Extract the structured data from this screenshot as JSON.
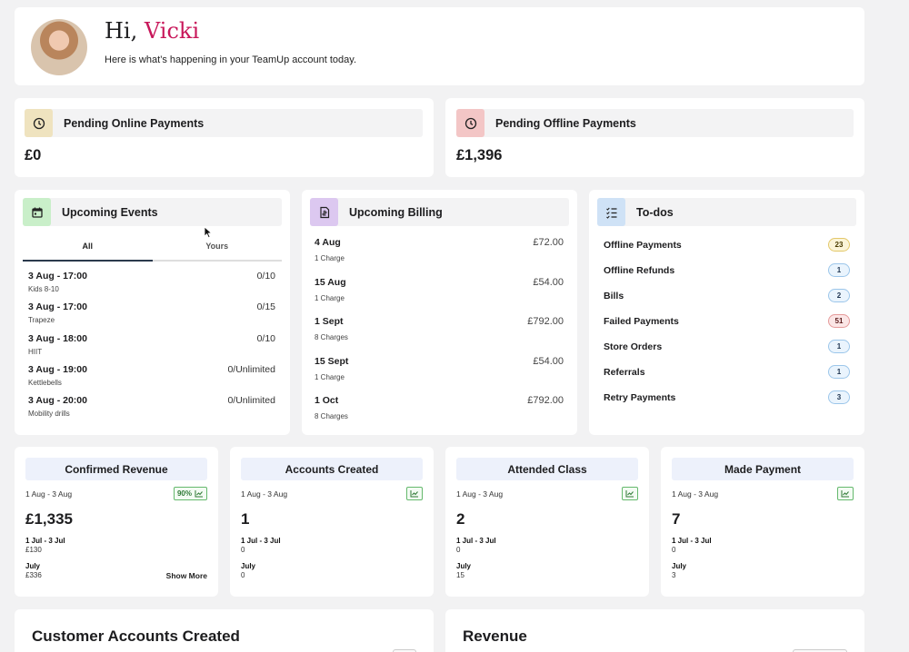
{
  "greeting": {
    "hi": "Hi,",
    "name": "Vicki",
    "subtitle": "Here is what’s happening in your TeamUp account today."
  },
  "payments": {
    "online": {
      "label": "Pending Online Payments",
      "amount": "£0"
    },
    "offline": {
      "label": "Pending Offline Payments",
      "amount": "£1,396"
    }
  },
  "events": {
    "title": "Upcoming Events",
    "tabs": [
      "All",
      "Yours"
    ],
    "items": [
      {
        "time": "3 Aug - 17:00",
        "name": "Kids 8-10",
        "count": "0/10"
      },
      {
        "time": "3 Aug - 17:00",
        "name": "Trapeze",
        "count": "0/15"
      },
      {
        "time": "3 Aug - 18:00",
        "name": "HIIT",
        "count": "0/10"
      },
      {
        "time": "3 Aug - 19:00",
        "name": "Kettlebells",
        "count": "0/Unlimited"
      },
      {
        "time": "3 Aug - 20:00",
        "name": "Mobility drills",
        "count": "0/Unlimited"
      }
    ]
  },
  "billing": {
    "title": "Upcoming Billing",
    "items": [
      {
        "date": "4 Aug",
        "charges": "1 Charge",
        "amount": "£72.00"
      },
      {
        "date": "15 Aug",
        "charges": "1 Charge",
        "amount": "£54.00"
      },
      {
        "date": "1 Sept",
        "charges": "8 Charges",
        "amount": "£792.00"
      },
      {
        "date": "15 Sept",
        "charges": "1 Charge",
        "amount": "£54.00"
      },
      {
        "date": "1 Oct",
        "charges": "8 Charges",
        "amount": "£792.00"
      }
    ]
  },
  "todos": {
    "title": "To-dos",
    "items": [
      {
        "label": "Offline Payments",
        "count": "23",
        "color": "yellow"
      },
      {
        "label": "Offline Refunds",
        "count": "1",
        "color": "blue"
      },
      {
        "label": "Bills",
        "count": "2",
        "color": "blue"
      },
      {
        "label": "Failed Payments",
        "count": "51",
        "color": "red"
      },
      {
        "label": "Store Orders",
        "count": "1",
        "color": "blue"
      },
      {
        "label": "Referrals",
        "count": "1",
        "color": "blue"
      },
      {
        "label": "Retry Payments",
        "count": "3",
        "color": "blue"
      }
    ]
  },
  "stats": [
    {
      "title": "Confirmed Revenue",
      "range": "1 Aug - 3 Aug",
      "trend": "90%",
      "value": "£1,335",
      "cmp1_label": "1 Jul - 3 Jul",
      "cmp1_value": "£130",
      "cmp2_label": "July",
      "cmp2_value": "£336",
      "more": "Show More"
    },
    {
      "title": "Accounts Created",
      "range": "1 Aug - 3 Aug",
      "trend": "",
      "value": "1",
      "cmp1_label": "1 Jul - 3 Jul",
      "cmp1_value": "0",
      "cmp2_label": "July",
      "cmp2_value": "0"
    },
    {
      "title": "Attended Class",
      "range": "1 Aug - 3 Aug",
      "trend": "",
      "value": "2",
      "cmp1_label": "1 Jul - 3 Jul",
      "cmp1_value": "0",
      "cmp2_label": "July",
      "cmp2_value": "15"
    },
    {
      "title": "Made Payment",
      "range": "1 Aug - 3 Aug",
      "trend": "",
      "value": "7",
      "cmp1_label": "1 Jul - 3 Jul",
      "cmp1_value": "0",
      "cmp2_label": "July",
      "cmp2_value": "3"
    }
  ],
  "bottom": {
    "left_title": "Customer Accounts Created",
    "right_title": "Revenue"
  },
  "colors": {
    "accent_name": "#c8175a",
    "online_icon_bg": "#efe3bf",
    "offline_icon_bg": "#f3c6c6",
    "events_icon_bg": "#c9efc9",
    "billing_icon_bg": "#dcc8f0",
    "todos_icon_bg": "#cfe2f6"
  },
  "icons": {
    "online": "clock-icon",
    "offline": "clock-icon",
    "events": "calendar-icon",
    "billing": "invoice-icon",
    "todos": "checklist-icon",
    "trend": "trend-chart-icon",
    "cursor": "mouse-pointer-icon"
  }
}
